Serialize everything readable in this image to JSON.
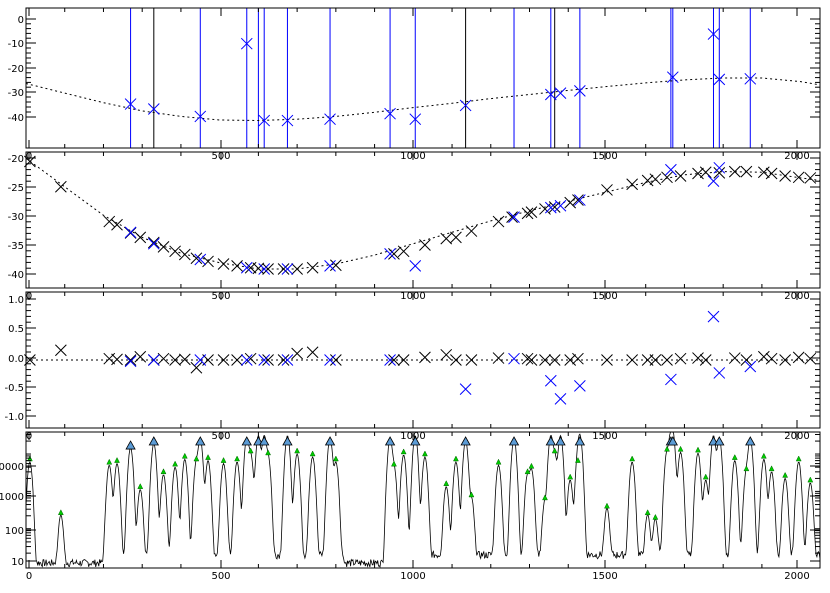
{
  "chart_data": [
    {
      "type": "scatter",
      "x_ticks": [
        "0",
        "500",
        "1000",
        "1500",
        "2000"
      ],
      "y_ticks": [
        "0",
        "-10",
        "-20",
        "-30",
        "-40"
      ],
      "xlim": [
        0,
        2050
      ],
      "ylim": [
        -48,
        3
      ],
      "marker": "x",
      "vertical_lines": {
        "black": [
          330,
          1135,
          1365
        ],
        "blue": [
          270,
          450,
          570,
          600,
          615,
          675,
          785,
          940,
          1005,
          1260,
          1355,
          1430,
          1665,
          1670,
          1775,
          1790,
          1870
        ]
      },
      "fit_curve": {
        "style": "dotted",
        "x": [
          0,
          100,
          200,
          300,
          400,
          500,
          600,
          700,
          800,
          900,
          1000,
          1100,
          1200,
          1300,
          1400,
          1500,
          1600,
          1700,
          1800,
          1900,
          2000,
          2050
        ],
        "y": [
          -24.5,
          -28,
          -31.5,
          -34.5,
          -36.5,
          -37.8,
          -38,
          -37.5,
          -36.5,
          -35,
          -33.3,
          -31.7,
          -30,
          -28.5,
          -27,
          -25.6,
          -24.3,
          -23.2,
          -22.5,
          -22.5,
          -23.8,
          -25
        ]
      },
      "series": [
        {
          "color": "#0000ff",
          "points": [
            [
              270,
              -32
            ],
            [
              330,
              -33.8
            ],
            [
              450,
              -36.5
            ],
            [
              570,
              -10
            ],
            [
              615,
              -38
            ],
            [
              675,
              -38
            ],
            [
              785,
              -37.5
            ],
            [
              940,
              -35.5
            ],
            [
              1005,
              -37.5
            ],
            [
              1135,
              -32.5
            ],
            [
              1355,
              -28.5
            ],
            [
              1380,
              -28
            ],
            [
              1430,
              -27.2
            ],
            [
              1670,
              -22.2
            ],
            [
              1775,
              -6.5
            ],
            [
              1790,
              -23
            ],
            [
              1870,
              -22.8
            ]
          ]
        }
      ]
    },
    {
      "type": "scatter",
      "x_ticks": [
        "0",
        "500",
        "1000",
        "1500",
        "2000"
      ],
      "y_ticks": [
        "-20",
        "-25",
        "-30",
        "-35",
        "-40"
      ],
      "xlim": [
        0,
        2050
      ],
      "ylim": [
        -41,
        -19.5
      ],
      "marker": "x",
      "fit_curve": {
        "style": "dotted",
        "x": [
          0,
          100,
          200,
          300,
          400,
          500,
          600,
          700,
          800,
          900,
          1000,
          1100,
          1200,
          1300,
          1400,
          1500,
          1600,
          1700,
          1800,
          1900,
          2000,
          2050
        ],
        "y": [
          -20.5,
          -25,
          -29.5,
          -33,
          -35.5,
          -37,
          -38,
          -38,
          -37.2,
          -35.8,
          -34,
          -32.2,
          -30.4,
          -28.8,
          -27.3,
          -25.8,
          -24.3,
          -23.1,
          -22.6,
          -22.7,
          -23.6,
          -24
        ]
      },
      "series": [
        {
          "color": "#000000",
          "points": [
            [
              10,
              -21
            ],
            [
              90,
              -25
            ],
            [
              215,
              -30.5
            ],
            [
              235,
              -31
            ],
            [
              270,
              -32.3
            ],
            [
              295,
              -33
            ],
            [
              330,
              -33.8
            ],
            [
              355,
              -34.5
            ],
            [
              385,
              -35.2
            ],
            [
              410,
              -35.7
            ],
            [
              440,
              -36.3
            ],
            [
              470,
              -36.8
            ],
            [
              510,
              -37.2
            ],
            [
              545,
              -37.5
            ],
            [
              580,
              -37.8
            ],
            [
              600,
              -37.9
            ],
            [
              625,
              -38
            ],
            [
              665,
              -38
            ],
            [
              700,
              -38
            ],
            [
              740,
              -37.8
            ],
            [
              800,
              -37.4
            ],
            [
              950,
              -35.6
            ],
            [
              975,
              -35.2
            ],
            [
              1030,
              -34.2
            ],
            [
              1085,
              -33.2
            ],
            [
              1110,
              -33
            ],
            [
              1150,
              -32
            ],
            [
              1220,
              -30.5
            ],
            [
              1255,
              -29.8
            ],
            [
              1295,
              -29.2
            ],
            [
              1305,
              -29
            ],
            [
              1340,
              -28.5
            ],
            [
              1365,
              -28.2
            ],
            [
              1405,
              -27.5
            ],
            [
              1425,
              -27.1
            ],
            [
              1500,
              -25.5
            ],
            [
              1565,
              -24.6
            ],
            [
              1605,
              -24
            ],
            [
              1625,
              -23.8
            ],
            [
              1655,
              -23.5
            ],
            [
              1690,
              -23.3
            ],
            [
              1735,
              -22.9
            ],
            [
              1755,
              -22.7
            ],
            [
              1790,
              -22.8
            ],
            [
              1830,
              -22.6
            ],
            [
              1860,
              -22.6
            ],
            [
              1905,
              -22.7
            ],
            [
              1925,
              -22.9
            ],
            [
              1960,
              -23.3
            ],
            [
              1995,
              -23.5
            ],
            [
              2025,
              -23.6
            ]
          ]
        },
        {
          "color": "#0000ff",
          "points": [
            [
              270,
              -32.2
            ],
            [
              330,
              -34
            ],
            [
              450,
              -36.5
            ],
            [
              570,
              -37.8
            ],
            [
              615,
              -38
            ],
            [
              675,
              -38
            ],
            [
              785,
              -37.5
            ],
            [
              940,
              -35.6
            ],
            [
              1005,
              -37.5
            ],
            [
              1260,
              -29.8
            ],
            [
              1355,
              -28.3
            ],
            [
              1380,
              -28
            ],
            [
              1430,
              -27.1
            ],
            [
              1665,
              -22.3
            ],
            [
              1775,
              -24.1
            ],
            [
              1790,
              -22
            ]
          ]
        }
      ]
    },
    {
      "type": "scatter",
      "x_ticks": [
        "0",
        "500",
        "1000",
        "1500",
        "2000"
      ],
      "y_ticks": [
        "1.0",
        "0.5",
        "0.0",
        "-0.5",
        "-1.0"
      ],
      "xlim": [
        0,
        2050
      ],
      "ylim": [
        -1.05,
        1.05
      ],
      "marker": "x",
      "baseline": {
        "y": 0,
        "style": "dotted"
      },
      "series": [
        {
          "color": "#000000",
          "points": [
            [
              10,
              0
            ],
            [
              90,
              0.15
            ],
            [
              215,
              0.02
            ],
            [
              235,
              0.01
            ],
            [
              270,
              0
            ],
            [
              295,
              0.05
            ],
            [
              330,
              0
            ],
            [
              355,
              0.02
            ],
            [
              385,
              0
            ],
            [
              410,
              0.01
            ],
            [
              440,
              -0.12
            ],
            [
              470,
              0
            ],
            [
              510,
              0
            ],
            [
              545,
              0
            ],
            [
              580,
              0.02
            ],
            [
              625,
              0
            ],
            [
              665,
              0
            ],
            [
              700,
              0.1
            ],
            [
              740,
              0.12
            ],
            [
              800,
              0
            ],
            [
              950,
              0
            ],
            [
              975,
              0
            ],
            [
              1030,
              0.04
            ],
            [
              1085,
              0.08
            ],
            [
              1110,
              0
            ],
            [
              1150,
              0
            ],
            [
              1220,
              0.03
            ],
            [
              1295,
              0.02
            ],
            [
              1305,
              0
            ],
            [
              1340,
              0
            ],
            [
              1365,
              0
            ],
            [
              1405,
              0
            ],
            [
              1425,
              0.02
            ],
            [
              1500,
              0
            ],
            [
              1565,
              0
            ],
            [
              1605,
              0
            ],
            [
              1625,
              0
            ],
            [
              1655,
              0
            ],
            [
              1690,
              0.02
            ],
            [
              1735,
              0.03
            ],
            [
              1755,
              0
            ],
            [
              1830,
              0.03
            ],
            [
              1860,
              0
            ],
            [
              1905,
              0.05
            ],
            [
              1925,
              0.02
            ],
            [
              1960,
              0
            ],
            [
              1995,
              0.04
            ],
            [
              2025,
              0.02
            ]
          ]
        },
        {
          "color": "#0000ff",
          "points": [
            [
              270,
              -0.02
            ],
            [
              330,
              0
            ],
            [
              450,
              0
            ],
            [
              570,
              0
            ],
            [
              615,
              0
            ],
            [
              675,
              0
            ],
            [
              785,
              0
            ],
            [
              940,
              0
            ],
            [
              1135,
              -0.45
            ],
            [
              1260,
              0.02
            ],
            [
              1355,
              -0.32
            ],
            [
              1380,
              -0.6
            ],
            [
              1430,
              -0.4
            ],
            [
              1665,
              -0.3
            ],
            [
              1775,
              0.67
            ],
            [
              1790,
              -0.2
            ],
            [
              1870,
              -0.1
            ]
          ]
        }
      ]
    },
    {
      "type": "line",
      "scale_y": "log",
      "x_ticks": [
        "0",
        "500",
        "1000",
        "1500",
        "2000"
      ],
      "y_ticks": [
        "10000",
        "1000",
        "100",
        "10"
      ],
      "xlim": [
        0,
        2050
      ],
      "ylim": [
        8,
        35000
      ],
      "peaks_green": [
        [
          10,
          5500
        ],
        [
          90,
          200
        ],
        [
          215,
          4500
        ],
        [
          235,
          5000
        ],
        [
          295,
          1000
        ],
        [
          355,
          2500
        ],
        [
          385,
          4000
        ],
        [
          410,
          6500
        ],
        [
          440,
          5500
        ],
        [
          470,
          6000
        ],
        [
          510,
          5000
        ],
        [
          545,
          5500
        ],
        [
          580,
          9000
        ],
        [
          625,
          8000
        ],
        [
          700,
          9000
        ],
        [
          740,
          7500
        ],
        [
          800,
          5500
        ],
        [
          950,
          4000
        ],
        [
          975,
          8500
        ],
        [
          1030,
          7500
        ],
        [
          1085,
          1200
        ],
        [
          1110,
          5500
        ],
        [
          1150,
          600
        ],
        [
          1220,
          4500
        ],
        [
          1295,
          2500
        ],
        [
          1305,
          3500
        ],
        [
          1340,
          500
        ],
        [
          1365,
          9000
        ],
        [
          1405,
          1800
        ],
        [
          1425,
          5000
        ],
        [
          1500,
          300
        ],
        [
          1565,
          5500
        ],
        [
          1605,
          200
        ],
        [
          1625,
          150
        ],
        [
          1655,
          10000
        ],
        [
          1690,
          10000
        ],
        [
          1735,
          9500
        ],
        [
          1755,
          1800
        ],
        [
          1830,
          6000
        ],
        [
          1860,
          3000
        ],
        [
          1905,
          6500
        ],
        [
          1925,
          3000
        ],
        [
          1960,
          2000
        ],
        [
          1995,
          5500
        ],
        [
          2025,
          1500
        ]
      ],
      "peaks_blue": [
        [
          270,
          13000
        ],
        [
          330,
          17000
        ],
        [
          450,
          22000
        ],
        [
          570,
          23000
        ],
        [
          600,
          28000
        ],
        [
          615,
          28000
        ],
        [
          675,
          28000
        ],
        [
          785,
          24000
        ],
        [
          940,
          23000
        ],
        [
          1005,
          28000
        ],
        [
          1135,
          20000
        ],
        [
          1260,
          23000
        ],
        [
          1355,
          28000
        ],
        [
          1380,
          28000
        ],
        [
          1430,
          28000
        ],
        [
          1665,
          28000
        ],
        [
          1670,
          28000
        ],
        [
          1775,
          28000
        ],
        [
          1790,
          24000
        ],
        [
          1870,
          22000
        ]
      ]
    }
  ],
  "colors": {
    "black": "#000000",
    "blue": "#0000ff",
    "green": "#00cc00",
    "triangle_fill": "#5b9bd5"
  }
}
